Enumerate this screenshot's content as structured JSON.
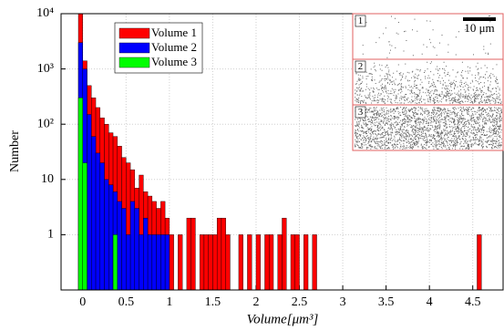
{
  "chart_data": {
    "type": "histogram",
    "xlabel": "Volume[μm³]",
    "ylabel": "Number",
    "log_y": true,
    "grid": true,
    "legend": "upper left",
    "bins": [
      -0.05,
      0,
      0.05,
      0.1,
      0.15,
      0.2,
      0.25,
      0.3,
      0.35,
      0.4,
      0.45,
      0.5,
      0.55,
      0.6,
      0.65,
      0.7,
      0.75,
      0.8,
      0.85,
      0.9,
      0.95,
      1,
      1.05,
      1.1,
      1.15,
      1.2,
      1.25,
      1.3,
      1.35,
      1.4,
      1.45,
      1.5,
      1.55,
      1.6,
      1.65,
      1.7,
      1.75,
      1.8,
      1.85,
      1.9,
      1.95,
      2,
      2.05,
      2.1,
      2.15,
      2.2,
      2.25,
      2.3,
      2.35,
      2.4,
      2.45,
      2.5,
      2.55,
      2.6,
      2.65,
      2.7,
      2.75,
      2.8,
      2.85,
      2.9,
      2.95,
      3,
      3.05,
      3.1,
      3.15,
      3.2,
      3.25,
      3.3,
      3.35,
      3.4,
      3.45,
      3.5,
      3.55,
      3.6,
      3.65,
      3.7,
      3.75,
      3.8,
      3.85,
      3.9,
      3.95,
      4,
      4.05,
      4.1,
      4.15,
      4.2,
      4.25,
      4.3,
      4.35,
      4.4,
      4.45,
      4.5,
      4.55,
      4.6
    ],
    "series": [
      {
        "name": "Volume 1",
        "color": "#ff0000",
        "values": [
          10000,
          1400,
          500,
          300,
          200,
          130,
          100,
          70,
          60,
          40,
          25,
          20,
          15,
          7,
          12,
          6,
          5,
          4,
          3,
          4,
          2,
          1,
          0,
          1,
          0,
          2,
          2,
          0,
          1,
          1,
          1,
          1,
          2,
          2,
          1,
          0,
          0,
          1,
          0,
          1,
          0,
          1,
          0,
          1,
          1,
          0,
          1,
          2,
          0,
          1,
          1,
          0,
          1,
          0,
          1,
          0,
          0,
          0,
          0,
          0,
          0,
          0,
          0,
          0,
          0,
          0,
          0,
          0,
          0,
          0,
          0,
          0,
          0,
          0,
          0,
          0,
          0,
          0,
          0,
          0,
          0,
          0,
          0,
          0,
          0,
          0,
          0,
          0,
          0,
          0,
          0,
          0,
          1
        ]
      },
      {
        "name": "Volume 2",
        "color": "#0000ff",
        "values": [
          3000,
          1000,
          150,
          60,
          30,
          20,
          10,
          8,
          6,
          4,
          3,
          1,
          4,
          3,
          1,
          2,
          1,
          1,
          1,
          1,
          1,
          0,
          0,
          0,
          0,
          0,
          0,
          0,
          0,
          0,
          0,
          0,
          0,
          0,
          0,
          0,
          0,
          0,
          0,
          0,
          0,
          0,
          0,
          0,
          0,
          0,
          0,
          0,
          0,
          0,
          0,
          0,
          0,
          0,
          0,
          0,
          0,
          0,
          0,
          0,
          0,
          0,
          0,
          0,
          0,
          0,
          0,
          0,
          0,
          0,
          0,
          0,
          0,
          0,
          0,
          0,
          0,
          0,
          0,
          0,
          0,
          0,
          0,
          0,
          0,
          0,
          0,
          0,
          0,
          0,
          0,
          0,
          0
        ]
      },
      {
        "name": "Volume 3",
        "color": "#00ff00",
        "values": [
          300,
          20,
          0,
          0,
          0,
          0,
          0,
          0,
          1,
          0,
          0,
          0,
          0,
          0,
          0,
          0,
          0,
          0,
          0,
          0,
          0,
          0,
          0,
          0,
          0,
          0,
          0,
          0,
          0,
          0,
          0,
          0,
          0,
          0,
          0,
          0,
          0,
          0,
          0,
          0,
          0,
          0,
          0,
          0,
          0,
          0,
          0,
          0,
          0,
          0,
          0,
          0,
          0,
          0,
          0,
          0,
          0,
          0,
          0,
          0,
          0,
          0,
          0,
          0,
          0,
          0,
          0,
          0,
          0,
          0,
          0,
          0,
          0,
          0,
          0,
          0,
          0,
          0,
          0,
          0,
          0,
          0,
          0,
          0,
          0,
          0,
          0,
          0,
          0,
          0,
          0,
          0,
          0
        ]
      }
    ],
    "xlim": [
      -0.25,
      4.85
    ],
    "xticks": [
      0,
      0.5,
      1,
      1.5,
      2,
      2.5,
      3,
      3.5,
      4,
      4.5
    ],
    "ylim": [
      0.1,
      10000
    ],
    "yticks": [
      1,
      10,
      {
        "value": 100,
        "label": "10²"
      },
      {
        "value": 1000,
        "label": "10³"
      },
      {
        "value": 10000,
        "label": "10⁴"
      }
    ],
    "annotations": [
      "1",
      "2",
      "3",
      "10 μm"
    ]
  }
}
